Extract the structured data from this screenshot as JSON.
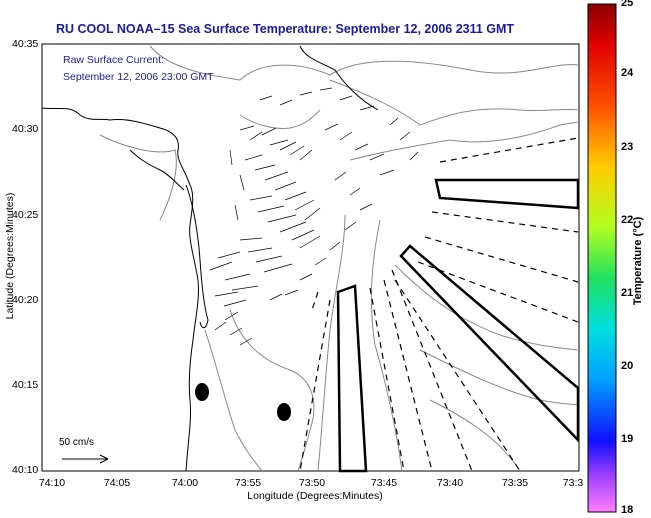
{
  "title": "RU COOL  NOAA–15  Sea Surface Temperature:  September 12, 2006 2311 GMT",
  "annotation": {
    "line1": "Raw Surface Current:",
    "line2": "September 12, 2006 23:00 GMT"
  },
  "y_axis": {
    "label": "Latitude (Degrees:Minutes)",
    "ticks": [
      "40:35",
      "40:30",
      "40:25",
      "40:20",
      "40:15",
      "40:10"
    ]
  },
  "x_axis": {
    "label": "Longitude (Degrees:Minutes)",
    "ticks": [
      "74:10",
      "74:05",
      "74:00",
      "73:55",
      "73:50",
      "73:45",
      "73:40",
      "73:35",
      "73:3"
    ]
  },
  "scale_label": "50 cm/s",
  "colorbar": {
    "label": "Temperature (°C)",
    "ticks": [
      "25",
      "24",
      "23",
      "22",
      "21",
      "20",
      "19",
      "18"
    ],
    "range": [
      18,
      25
    ]
  }
}
